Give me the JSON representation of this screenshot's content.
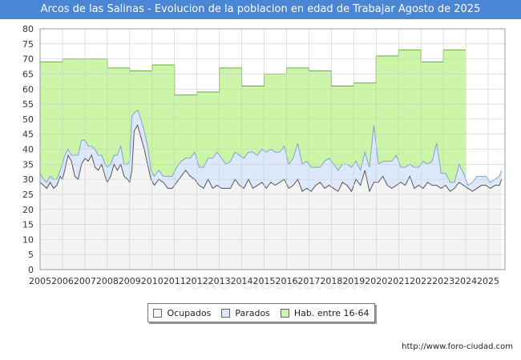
{
  "chart_data": {
    "type": "area",
    "title": "Arcos de las Salinas - Evolucion de la poblacion en edad de Trabajar Agosto de 2025",
    "xlabel": "",
    "ylabel": "",
    "ylim": [
      0,
      80
    ],
    "yticks": [
      0,
      5,
      10,
      15,
      20,
      25,
      30,
      35,
      40,
      45,
      50,
      55,
      60,
      65,
      70,
      75,
      80
    ],
    "xlim": [
      2005,
      2025.75
    ],
    "xticks": [
      "2005",
      "2006",
      "2007",
      "2008",
      "2009",
      "2010",
      "2011",
      "2012",
      "2013",
      "2014",
      "2015",
      "2016",
      "2017",
      "2018",
      "2019",
      "2020",
      "2021",
      "2022",
      "2023",
      "2024",
      "2025"
    ],
    "grid": true,
    "legend_position": "bottom",
    "series": [
      {
        "name": "Ocupados",
        "color": "#f4f4f4",
        "line": "#555555",
        "x": [
          2005.0,
          2005.15,
          2005.3,
          2005.45,
          2005.6,
          2005.75,
          2005.9,
          2006.0,
          2006.1,
          2006.25,
          2006.4,
          2006.55,
          2006.7,
          2006.85,
          2007.0,
          2007.15,
          2007.3,
          2007.45,
          2007.6,
          2007.75,
          2007.9,
          2008.0,
          2008.15,
          2008.3,
          2008.45,
          2008.6,
          2008.75,
          2008.9,
          2009.0,
          2009.1,
          2009.2,
          2009.35,
          2009.5,
          2009.65,
          2009.8,
          2009.95,
          2010.1,
          2010.3,
          2010.5,
          2010.7,
          2010.9,
          2011.1,
          2011.3,
          2011.5,
          2011.7,
          2011.9,
          2012.1,
          2012.3,
          2012.5,
          2012.7,
          2012.9,
          2013.1,
          2013.3,
          2013.5,
          2013.7,
          2013.9,
          2014.1,
          2014.3,
          2014.5,
          2014.7,
          2014.9,
          2015.1,
          2015.3,
          2015.5,
          2015.7,
          2015.9,
          2016.1,
          2016.3,
          2016.5,
          2016.7,
          2016.9,
          2017.1,
          2017.3,
          2017.5,
          2017.7,
          2017.9,
          2018.1,
          2018.3,
          2018.5,
          2018.7,
          2018.9,
          2019.1,
          2019.3,
          2019.5,
          2019.7,
          2019.9,
          2020.1,
          2020.3,
          2020.5,
          2020.7,
          2020.9,
          2021.1,
          2021.3,
          2021.5,
          2021.7,
          2021.9,
          2022.1,
          2022.3,
          2022.5,
          2022.7,
          2022.9,
          2023.1,
          2023.3,
          2023.5,
          2023.7,
          2023.9,
          2024.1,
          2024.3,
          2024.5,
          2024.7,
          2024.9,
          2025.1,
          2025.3,
          2025.5,
          2025.6
        ],
        "values": [
          29,
          28,
          27,
          29,
          27,
          28,
          31,
          30,
          33,
          38,
          36,
          31,
          30,
          35,
          37,
          36,
          38,
          34,
          33,
          35,
          31,
          29,
          31,
          35,
          33,
          35,
          31,
          30,
          29,
          33,
          46,
          48,
          44,
          40,
          35,
          30,
          28,
          30,
          29,
          27,
          27,
          29,
          31,
          33,
          31,
          30,
          28,
          27,
          30,
          27,
          28,
          27,
          27,
          27,
          30,
          28,
          27,
          30,
          27,
          28,
          29,
          27,
          29,
          28,
          29,
          30,
          27,
          28,
          30,
          26,
          27,
          26,
          28,
          29,
          27,
          28,
          27,
          26,
          29,
          28,
          26,
          30,
          28,
          33,
          26,
          29,
          29,
          31,
          28,
          27,
          28,
          29,
          28,
          31,
          27,
          28,
          27,
          29,
          28,
          28,
          27,
          28,
          26,
          27,
          29,
          28,
          27,
          26,
          27,
          28,
          28,
          27,
          28,
          28,
          30
        ]
      },
      {
        "name": "Parados",
        "color": "#dde9fb",
        "line": "#7aa4d8",
        "x": [
          2005.0,
          2005.15,
          2005.3,
          2005.45,
          2005.6,
          2005.75,
          2005.9,
          2006.0,
          2006.1,
          2006.25,
          2006.4,
          2006.55,
          2006.7,
          2006.85,
          2007.0,
          2007.15,
          2007.3,
          2007.45,
          2007.6,
          2007.75,
          2007.9,
          2008.0,
          2008.15,
          2008.3,
          2008.45,
          2008.6,
          2008.75,
          2008.9,
          2009.0,
          2009.1,
          2009.2,
          2009.35,
          2009.5,
          2009.65,
          2009.8,
          2009.95,
          2010.1,
          2010.3,
          2010.5,
          2010.7,
          2010.9,
          2011.1,
          2011.3,
          2011.5,
          2011.7,
          2011.9,
          2012.1,
          2012.3,
          2012.5,
          2012.7,
          2012.9,
          2013.1,
          2013.3,
          2013.5,
          2013.7,
          2013.9,
          2014.1,
          2014.3,
          2014.5,
          2014.7,
          2014.9,
          2015.1,
          2015.3,
          2015.5,
          2015.7,
          2015.9,
          2016.1,
          2016.3,
          2016.5,
          2016.7,
          2016.9,
          2017.1,
          2017.3,
          2017.5,
          2017.7,
          2017.9,
          2018.1,
          2018.3,
          2018.5,
          2018.7,
          2018.9,
          2019.1,
          2019.3,
          2019.5,
          2019.7,
          2019.9,
          2020.1,
          2020.3,
          2020.5,
          2020.7,
          2020.9,
          2021.1,
          2021.3,
          2021.5,
          2021.7,
          2021.9,
          2022.1,
          2022.3,
          2022.5,
          2022.7,
          2022.9,
          2023.1,
          2023.3,
          2023.5,
          2023.7,
          2023.9,
          2024.1,
          2024.3,
          2024.5,
          2024.7,
          2024.9,
          2025.1,
          2025.3,
          2025.5,
          2025.6
        ],
        "values": [
          3,
          2,
          2,
          2,
          3,
          2,
          2,
          5,
          5,
          2,
          2,
          7,
          8,
          8,
          6,
          5,
          3,
          6,
          5,
          3,
          4,
          5,
          4,
          3,
          5,
          6,
          4,
          5,
          7,
          18,
          6,
          5,
          6,
          6,
          6,
          3,
          3,
          3,
          2,
          4,
          4,
          5,
          5,
          4,
          6,
          9,
          6,
          7,
          7,
          10,
          11,
          10,
          8,
          9,
          9,
          10,
          10,
          9,
          12,
          10,
          11,
          12,
          11,
          11,
          10,
          11,
          8,
          9,
          12,
          9,
          9,
          8,
          6,
          5,
          9,
          9,
          8,
          7,
          6,
          7,
          8,
          6,
          5,
          6,
          8,
          19,
          6,
          5,
          8,
          9,
          10,
          5,
          6,
          4,
          7,
          6,
          9,
          6,
          8,
          14,
          5,
          4,
          3,
          2,
          6,
          4,
          1,
          3,
          4,
          3,
          3,
          2,
          2,
          3,
          3
        ]
      },
      {
        "name": "Hab. entre 16-64",
        "color": "#ccf5a8",
        "line": "#66aa44",
        "x": [
          2005,
          2006,
          2007,
          2008,
          2009,
          2010,
          2011,
          2012,
          2013,
          2014,
          2015,
          2016,
          2017,
          2018,
          2019,
          2020,
          2021,
          2022,
          2023,
          2024
        ],
        "values": [
          69,
          70,
          70,
          67,
          66,
          68,
          58,
          59,
          67,
          61,
          65,
          67,
          66,
          61,
          62,
          71,
          73,
          69,
          73,
          null
        ]
      }
    ]
  },
  "legend": {
    "items": [
      "Ocupados",
      "Parados",
      "Hab. entre 16-64"
    ]
  },
  "watermark": "FORO-CIUDAD.COM",
  "source_text": "http://www.foro-ciudad.com"
}
